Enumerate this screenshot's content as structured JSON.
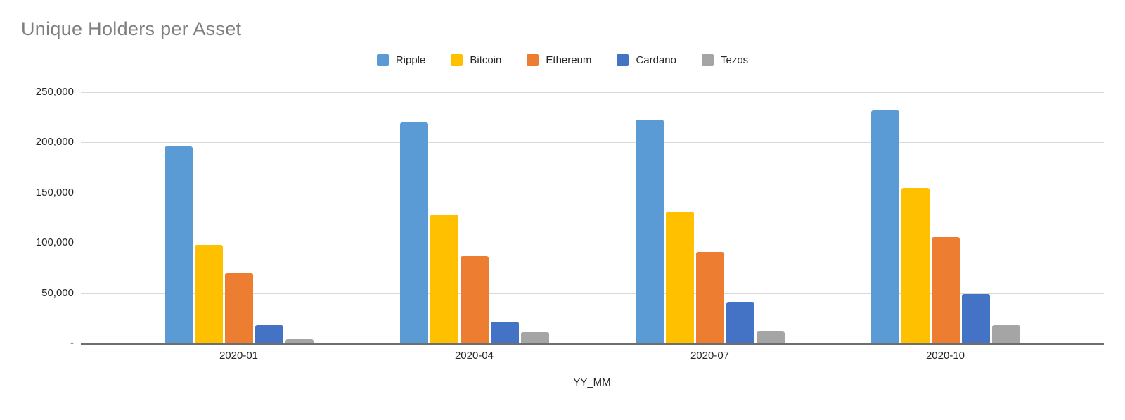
{
  "title": "Unique Holders per Asset",
  "chart_data": {
    "type": "bar",
    "title": "Unique Holders per Asset",
    "xlabel": "YY_MM",
    "ylabel": "",
    "categories": [
      "2020-01",
      "2020-04",
      "2020-07",
      "2020-10"
    ],
    "series": [
      {
        "name": "Ripple",
        "color": "#5B9BD5",
        "values": [
          196000,
          220000,
          223000,
          232000
        ]
      },
      {
        "name": "Bitcoin",
        "color": "#FFC000",
        "values": [
          98000,
          128000,
          131000,
          155000
        ]
      },
      {
        "name": "Ethereum",
        "color": "#ED7D31",
        "values": [
          70000,
          87000,
          91000,
          106000
        ]
      },
      {
        "name": "Cardano",
        "color": "#4472C4",
        "values": [
          18000,
          22000,
          41000,
          49000
        ]
      },
      {
        "name": "Tezos",
        "color": "#A5A5A5",
        "values": [
          4000,
          11000,
          12000,
          18000
        ]
      }
    ],
    "ylim": [
      0,
      250000
    ],
    "ytick_step": 50000,
    "ytick_labels": [
      "-",
      "50,000",
      "100,000",
      "150,000",
      "200,000",
      "250,000"
    ],
    "legend_position": "top",
    "grid": true
  },
  "colors": {
    "background": "#ffffff",
    "title_text": "#7f7f7f",
    "gridline": "#d9d9d9",
    "axis_line": "#6e6e6e",
    "tick_text": "#262626"
  }
}
